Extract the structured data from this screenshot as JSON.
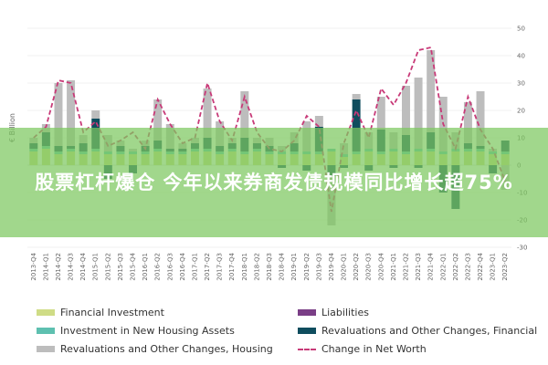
{
  "headline": "股票杠杆爆仓 今年以来券商发债规模同比增长超75%",
  "chart_data": {
    "type": "bar",
    "stacked": true,
    "ylabel": "€ Billion",
    "ylim": [
      -30,
      50
    ],
    "yticks": [
      50,
      40,
      30,
      20,
      10,
      0,
      -10,
      -20,
      -30
    ],
    "grid": true,
    "legend_position": "bottom",
    "categories": [
      "2013-Q4",
      "2014-Q1",
      "2014-Q2",
      "2014-Q3",
      "2014-Q4",
      "2015-Q1",
      "2015-Q2",
      "2015-Q3",
      "2015-Q4",
      "2016-Q1",
      "2016-Q2",
      "2016-Q3",
      "2016-Q4",
      "2017-Q1",
      "2017-Q2",
      "2017-Q3",
      "2017-Q4",
      "2018-Q1",
      "2018-Q2",
      "2018-Q3",
      "2018-Q4",
      "2019-Q1",
      "2019-Q2",
      "2019-Q3",
      "2019-Q4",
      "2020-Q1",
      "2020-Q2",
      "2020-Q3",
      "2020-Q4",
      "2021-Q1",
      "2021-Q2",
      "2021-Q3",
      "2021-Q4",
      "2022-Q1",
      "2022-Q2",
      "2022-Q3",
      "2022-Q4",
      "2023-Q1",
      "2023-Q2"
    ],
    "series": [
      {
        "name": "Financial Investment",
        "color": "#cfdc86",
        "values": [
          5,
          6,
          4,
          5,
          4,
          5,
          4,
          4,
          4,
          4,
          5,
          4,
          4,
          5,
          5,
          4,
          5,
          4,
          5,
          4,
          4,
          4,
          4,
          4,
          5,
          3,
          4,
          5,
          4,
          5,
          4,
          5,
          5,
          4,
          5,
          5,
          5,
          4,
          4
        ]
      },
      {
        "name": "Liabilities",
        "color": "#7a3e86",
        "values": [
          0,
          0,
          0,
          0,
          0,
          0,
          0,
          0,
          0,
          0,
          0,
          0,
          0,
          0,
          0,
          0,
          0,
          0,
          0,
          0,
          0,
          0,
          0,
          0,
          0,
          0,
          0,
          0,
          0,
          0,
          0,
          0,
          0,
          0,
          0,
          0,
          0,
          0,
          0
        ]
      },
      {
        "name": "Investment in New Housing Assets",
        "color": "#5ec0b0",
        "values": [
          1,
          1,
          1,
          1,
          1,
          1,
          1,
          1,
          1,
          1,
          1,
          1,
          1,
          1,
          1,
          1,
          1,
          1,
          1,
          1,
          1,
          1,
          1,
          1,
          1,
          1,
          1,
          1,
          1,
          1,
          1,
          1,
          1,
          1,
          1,
          1,
          1,
          1,
          1
        ]
      },
      {
        "name": "Revaluations and Other Changes, Financial",
        "color": "#0f4d5e",
        "values": [
          2,
          5,
          2,
          1,
          3,
          11,
          -5,
          2,
          -3,
          2,
          3,
          1,
          1,
          2,
          4,
          2,
          2,
          5,
          2,
          2,
          -1,
          3,
          -2,
          9,
          -4,
          -1,
          19,
          -2,
          8,
          -1,
          6,
          -1,
          6,
          -10,
          -16,
          2,
          1,
          -3,
          4
        ]
      },
      {
        "name": "Revaluations and Other Changes, Housing",
        "color": "#bdbdbd",
        "values": [
          2,
          3,
          23,
          24,
          3,
          3,
          6,
          2,
          1,
          2,
          15,
          9,
          2,
          2,
          18,
          9,
          2,
          17,
          2,
          3,
          2,
          4,
          11,
          4,
          -18,
          4,
          2,
          6,
          12,
          6,
          18,
          26,
          30,
          20,
          6,
          15,
          20,
          1,
          -9
        ]
      }
    ],
    "net_worth_change": [
      10,
      14,
      31,
      30,
      12,
      16,
      7,
      9,
      12,
      6,
      24,
      15,
      8,
      10,
      30,
      16,
      9,
      25,
      12,
      6,
      5,
      9,
      18,
      14,
      -17,
      8,
      20,
      10,
      28,
      22,
      30,
      42,
      43,
      15,
      6,
      25,
      13,
      6,
      -6
    ]
  },
  "legend": {
    "financial_investment": "Financial Investment",
    "liabilities": "Liabilities",
    "investment_housing": "Investment in New Housing Assets",
    "reval_financial": "Revaluations and Other Changes, Financial",
    "reval_housing": "Revaluations and Other Changes, Housing",
    "net_worth": "Change in Net Worth"
  },
  "colors": {
    "financial_investment": "#cfdc86",
    "liabilities": "#7a3e86",
    "investment_housing": "#5ec0b0",
    "reval_financial": "#0f4d5e",
    "reval_housing": "#bdbdbd",
    "net_worth": "#c83a78",
    "overlay": "#7dc85f"
  }
}
